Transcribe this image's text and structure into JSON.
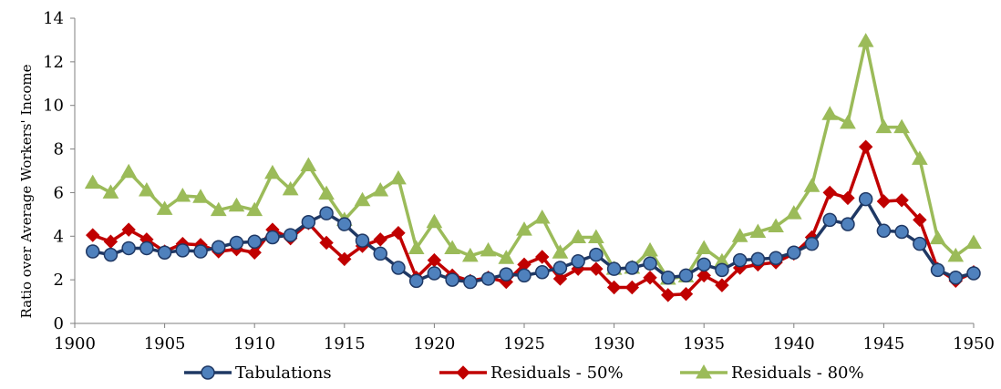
{
  "chart_data": {
    "type": "line",
    "title": "",
    "xlabel": "",
    "ylabel": "Ratio over Average Workers' Income",
    "xlim": [
      1900,
      1950
    ],
    "ylim": [
      0,
      14
    ],
    "x_ticks": [
      1900,
      1905,
      1910,
      1915,
      1920,
      1925,
      1930,
      1935,
      1940,
      1945,
      1950
    ],
    "y_ticks": [
      0,
      2,
      4,
      6,
      8,
      10,
      12,
      14
    ],
    "grid": false,
    "legend_position": "bottom",
    "x": [
      1901,
      1902,
      1903,
      1904,
      1905,
      1906,
      1907,
      1908,
      1909,
      1910,
      1911,
      1912,
      1913,
      1914,
      1915,
      1916,
      1917,
      1918,
      1919,
      1920,
      1921,
      1922,
      1923,
      1924,
      1925,
      1926,
      1927,
      1928,
      1929,
      1930,
      1931,
      1932,
      1933,
      1934,
      1935,
      1936,
      1937,
      1938,
      1939,
      1940,
      1941,
      1942,
      1943,
      1944,
      1945,
      1946,
      1947,
      1948,
      1949,
      1950
    ],
    "series": [
      {
        "name": "Tabulations",
        "color": "#1f3864",
        "marker": "circle",
        "values": [
          3.3,
          3.15,
          3.45,
          3.45,
          3.25,
          3.35,
          3.3,
          3.5,
          3.7,
          3.75,
          3.95,
          4.05,
          4.65,
          5.05,
          4.55,
          3.8,
          3.2,
          2.55,
          1.95,
          2.3,
          2.0,
          1.9,
          2.05,
          2.25,
          2.2,
          2.35,
          2.55,
          2.85,
          3.15,
          2.5,
          2.55,
          2.75,
          2.1,
          2.2,
          2.7,
          2.45,
          2.9,
          2.95,
          3.0,
          3.25,
          3.65,
          4.75,
          4.55,
          5.7,
          4.25,
          4.2,
          3.65,
          2.45,
          2.1,
          2.3
        ]
      },
      {
        "name": "Residuals - 50%",
        "color": "#c00000",
        "marker": "diamond",
        "values": [
          4.05,
          3.75,
          4.3,
          3.85,
          3.3,
          3.65,
          3.6,
          3.3,
          3.4,
          3.25,
          4.3,
          3.9,
          4.6,
          3.7,
          2.95,
          3.55,
          3.85,
          4.15,
          2.1,
          2.9,
          2.2,
          1.95,
          2.1,
          1.9,
          2.7,
          3.05,
          2.05,
          2.5,
          2.5,
          1.65,
          1.65,
          2.1,
          1.3,
          1.35,
          2.2,
          1.75,
          2.55,
          2.7,
          2.8,
          3.2,
          3.95,
          6.0,
          5.75,
          8.1,
          5.6,
          5.65,
          4.75,
          2.5,
          1.95,
          2.35
        ]
      },
      {
        "name": "Residuals - 80%",
        "color": "#9bbb59",
        "marker": "triangle",
        "values": [
          6.45,
          6.0,
          6.95,
          6.1,
          5.25,
          5.85,
          5.8,
          5.2,
          5.4,
          5.2,
          6.9,
          6.15,
          7.25,
          5.95,
          4.75,
          5.65,
          6.1,
          6.65,
          3.45,
          4.65,
          3.45,
          3.1,
          3.35,
          3.0,
          4.3,
          4.85,
          3.25,
          3.95,
          3.95,
          2.5,
          2.55,
          3.35,
          2.05,
          2.15,
          3.45,
          2.85,
          4.0,
          4.2,
          4.45,
          5.05,
          6.3,
          9.6,
          9.2,
          12.95,
          9.0,
          9.0,
          7.55,
          3.9,
          3.1,
          3.7
        ]
      }
    ]
  }
}
